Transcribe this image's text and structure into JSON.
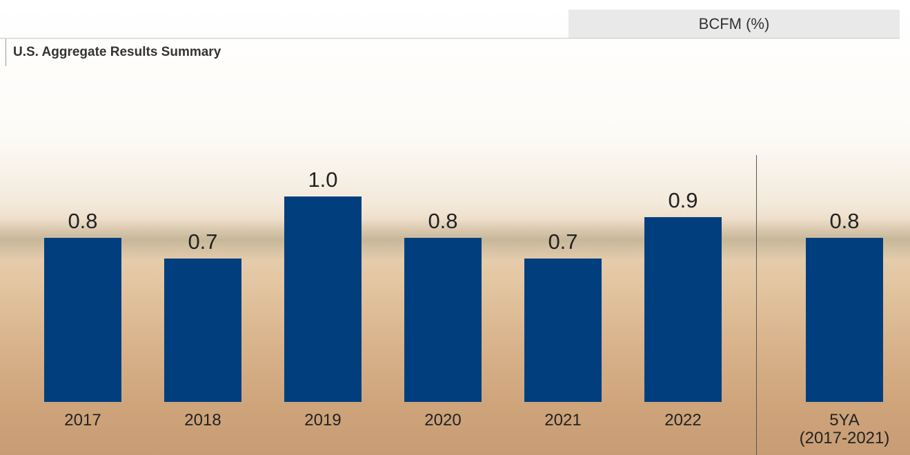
{
  "header": "BCFM (%)",
  "chart_data": {
    "type": "bar",
    "title": "U.S. Aggregate Results Summary",
    "categories": [
      "2017",
      "2018",
      "2019",
      "2020",
      "2021",
      "2022",
      "5YA\n(2017-2021)"
    ],
    "values": [
      0.8,
      0.7,
      1.0,
      0.8,
      0.7,
      0.9,
      0.8
    ],
    "value_labels": [
      "0.8",
      "0.7",
      "1.0",
      "0.8",
      "0.7",
      "0.9",
      "0.8"
    ],
    "color": "#003e7e",
    "ylim": [
      0,
      1.2
    ]
  }
}
